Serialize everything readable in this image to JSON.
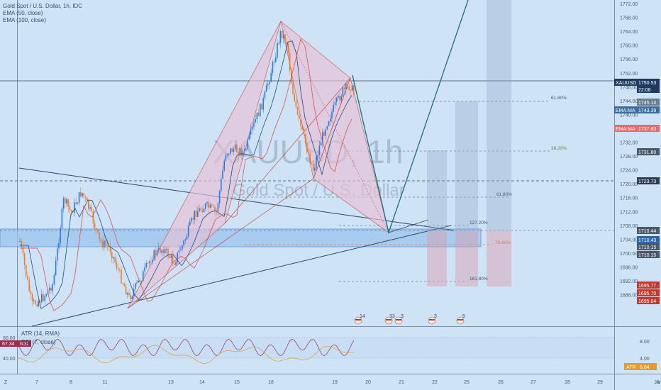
{
  "legend": {
    "title": "Gold Spot / U.S. Dollar, 1h, IDC",
    "ema1": "EMA (50, close)",
    "ema2": "EMA (100, close)"
  },
  "watermark": {
    "symbol": "XAUUSD, 1h",
    "name": "Gold Spot / U.S. Dollar"
  },
  "price_axis": {
    "ticks": [
      "1772.00",
      "1768.00",
      "1764.00",
      "1760.00",
      "1756.00",
      "1752.00",
      "1748.00",
      "1744.00",
      "1740.00",
      "1736.00",
      "1732.00",
      "1728.00",
      "1724.00",
      "1720.00",
      "1716.00",
      "1712.00",
      "1708.00",
      "1704.00",
      "1700.00",
      "1696.00",
      "1692.00",
      "1688.00"
    ]
  },
  "price_tags": [
    {
      "label": "XAUUSD",
      "value": "1750.53",
      "bg": "#1e3a5f",
      "fg": "#ffffff"
    },
    {
      "label": "",
      "value": "22:08",
      "bg": "#1e3a5f",
      "fg": "#ffffff"
    },
    {
      "label": "",
      "value": "1745.14",
      "bg": "#6b7d90",
      "fg": "#ffffff"
    },
    {
      "label": "EMA:MA",
      "value": "1743.39",
      "bg": "#3b6e9e",
      "fg": "#ffffff"
    },
    {
      "label": "EMA:MA",
      "value": "1737.83",
      "bg": "#e86a6a",
      "fg": "#ffffff"
    },
    {
      "label": "",
      "value": "1731.80",
      "bg": "#4a5868",
      "fg": "#ffffff"
    },
    {
      "label": "",
      "value": "1723.73",
      "bg": "#2d3e52",
      "fg": "#ffffff"
    },
    {
      "label": "",
      "value": "1710.44",
      "bg": "#4a5868",
      "fg": "#ffffff"
    },
    {
      "label": "",
      "value": "1710.43",
      "bg": "#2a67a8",
      "fg": "#ffffff"
    },
    {
      "label": "",
      "value": "1710.15",
      "bg": "#4a5868",
      "fg": "#ffffff"
    },
    {
      "label": "",
      "value": "1710.15",
      "bg": "#4a5868",
      "fg": "#ffffff"
    },
    {
      "label": "",
      "value": "1695.77",
      "bg": "#c0392b",
      "fg": "#ffffff"
    },
    {
      "label": "",
      "value": "1695.70",
      "bg": "#c0392b",
      "fg": "#ffffff"
    },
    {
      "label": "",
      "value": "1695.64",
      "bg": "#c0392b",
      "fg": "#ffffff"
    }
  ],
  "fib_labels": [
    "61.80%",
    "38.20%",
    "61.80%",
    "127.20%",
    "78.60%",
    "161.80%"
  ],
  "time_axis": {
    "corner": "Z",
    "ticks": [
      "7",
      "8",
      "11",
      "13",
      "14",
      "15",
      "18",
      "19",
      "20",
      "21",
      "22",
      "25",
      "26",
      "27",
      "28",
      "29",
      "Jun",
      "A"
    ]
  },
  "event_badges": [
    "14",
    "33",
    "3",
    "3",
    "5"
  ],
  "indicator": {
    "atr_legend": "ATR (14, RMA)",
    "rsi_legend": "RSI (7, close)",
    "rsi_value": "67.34",
    "rsi_tag": "RSI",
    "atr_tag": "ATR",
    "atr_value": "6.04",
    "left_ticks": [
      "80.00",
      "40.00"
    ],
    "right_ticks": [
      "8.00",
      "4.00"
    ]
  },
  "colors": {
    "background": "#cfe3f7",
    "bull": "#2a7be4",
    "bear": "#f07b1c",
    "pattern_fill": "#e9c9d8",
    "pattern_line": "#c0392b",
    "projection": "#1d6e75",
    "zone": "#a9cdef"
  }
}
